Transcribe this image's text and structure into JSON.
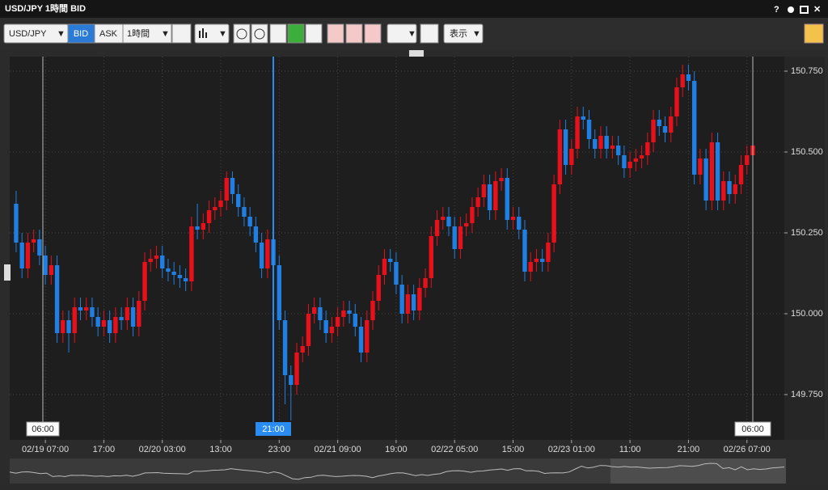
{
  "window": {
    "title": "USD/JPY 1時間 BID",
    "help": "?"
  },
  "toolbar": {
    "symbol": "USD/JPY",
    "bid": "BID",
    "ask": "ASK",
    "period": "1時間",
    "view": "表示"
  },
  "cursor": {
    "left": "06:00",
    "center": "21:00",
    "right": "06:00"
  },
  "chart_data": {
    "type": "candlestick",
    "open": [
      150.34,
      150.22,
      150.14,
      150.22,
      150.23,
      150.18,
      150.12,
      150.15,
      149.94,
      149.98,
      149.94,
      150.02,
      150.01,
      150.02,
      149.99,
      149.96,
      149.98,
      149.94,
      149.99,
      149.98,
      150.02,
      149.96,
      150.04,
      150.16,
      150.17,
      150.18,
      150.14,
      150.13,
      150.12,
      150.11,
      150.1,
      150.27,
      150.26,
      150.28,
      150.32,
      150.33,
      150.35,
      150.42,
      150.37,
      150.33,
      150.3,
      150.27,
      150.22,
      150.14,
      150.23,
      150.15,
      149.98,
      149.81,
      149.78,
      149.88,
      149.9,
      150.0,
      150.02,
      149.98,
      149.94,
      149.96,
      149.99,
      150.01,
      150.0,
      149.96,
      149.88,
      149.98,
      150.04,
      150.12,
      150.17,
      150.16,
      150.09,
      150.0,
      150.06,
      150.01,
      150.08,
      150.11,
      150.24,
      150.29,
      150.3,
      150.27,
      150.2,
      150.27,
      150.28,
      150.33,
      150.36,
      150.4,
      150.32,
      150.41,
      150.42,
      150.29,
      150.3,
      150.26,
      150.13,
      150.16,
      150.17,
      150.16,
      150.22,
      150.4,
      150.57,
      150.46,
      150.51,
      150.61,
      150.6,
      150.54,
      150.51,
      150.55,
      150.51,
      150.52,
      150.49,
      150.45,
      150.47,
      150.48,
      150.49,
      150.53,
      150.6,
      150.58,
      150.56,
      150.61,
      150.7,
      150.74,
      150.72,
      150.43,
      150.48,
      150.35,
      150.53,
      150.35,
      150.41,
      150.37,
      150.4,
      150.46,
      150.49
    ],
    "high": [
      150.38,
      150.25,
      150.25,
      150.26,
      150.26,
      150.21,
      150.18,
      150.18,
      150.01,
      150.01,
      150.05,
      150.05,
      150.05,
      150.05,
      150.02,
      150.01,
      150.01,
      150.02,
      150.02,
      150.05,
      150.05,
      150.07,
      150.19,
      150.2,
      150.21,
      150.21,
      150.17,
      150.16,
      150.15,
      150.14,
      150.3,
      150.34,
      150.31,
      150.35,
      150.36,
      150.38,
      150.44,
      150.44,
      150.4,
      150.36,
      150.33,
      150.3,
      150.25,
      150.26,
      150.26,
      150.18,
      150.01,
      149.84,
      149.91,
      149.93,
      150.03,
      150.05,
      150.05,
      150.01,
      149.99,
      150.02,
      150.04,
      150.04,
      150.03,
      149.99,
      150.01,
      150.07,
      150.15,
      150.2,
      150.2,
      150.19,
      150.12,
      150.09,
      150.09,
      150.11,
      150.14,
      150.27,
      150.32,
      150.33,
      150.33,
      150.3,
      150.3,
      150.31,
      150.36,
      150.39,
      150.43,
      150.43,
      150.44,
      150.45,
      150.45,
      150.33,
      150.33,
      150.29,
      150.19,
      150.2,
      150.2,
      150.25,
      150.43,
      150.6,
      150.6,
      150.54,
      150.64,
      150.64,
      150.63,
      150.57,
      150.58,
      150.58,
      150.55,
      150.55,
      150.52,
      150.5,
      150.51,
      150.52,
      150.56,
      150.63,
      150.63,
      150.61,
      150.64,
      150.73,
      150.77,
      150.77,
      150.75,
      150.51,
      150.51,
      150.56,
      150.56,
      150.44,
      150.44,
      150.43,
      150.49,
      150.52,
      150.54
    ],
    "low": [
      150.19,
      150.11,
      150.11,
      150.19,
      150.15,
      150.09,
      150.09,
      149.91,
      149.91,
      149.88,
      149.91,
      149.98,
      149.98,
      149.96,
      149.93,
      149.93,
      149.91,
      149.91,
      149.95,
      149.95,
      149.93,
      149.93,
      150.01,
      150.13,
      150.14,
      150.11,
      150.1,
      150.09,
      150.08,
      150.07,
      150.07,
      150.23,
      150.23,
      150.25,
      150.29,
      150.3,
      150.32,
      150.34,
      150.3,
      150.27,
      150.24,
      150.19,
      150.11,
      150.11,
      150.12,
      149.95,
      149.72,
      149.67,
      149.75,
      149.85,
      149.87,
      149.97,
      149.95,
      149.91,
      149.91,
      149.93,
      149.96,
      149.97,
      149.93,
      149.85,
      149.85,
      149.95,
      150.01,
      150.09,
      150.13,
      150.06,
      149.97,
      149.97,
      149.98,
      149.98,
      150.05,
      150.08,
      150.21,
      150.26,
      150.24,
      150.17,
      150.17,
      150.24,
      150.25,
      150.3,
      150.33,
      150.29,
      150.29,
      150.38,
      150.26,
      150.26,
      150.23,
      150.1,
      150.1,
      150.13,
      150.13,
      150.13,
      150.19,
      150.37,
      150.43,
      150.43,
      150.48,
      150.57,
      150.51,
      150.48,
      150.48,
      150.48,
      150.48,
      150.46,
      150.42,
      150.42,
      150.44,
      150.45,
      150.46,
      150.5,
      150.55,
      150.53,
      150.53,
      150.58,
      150.67,
      150.69,
      150.4,
      150.4,
      150.32,
      150.32,
      150.32,
      150.32,
      150.34,
      150.34,
      150.37,
      150.43,
      150.46
    ],
    "close": [
      150.22,
      150.14,
      150.22,
      150.23,
      150.18,
      150.12,
      150.15,
      149.94,
      149.98,
      149.94,
      150.02,
      150.01,
      150.02,
      149.99,
      149.96,
      149.98,
      149.94,
      149.99,
      149.98,
      150.02,
      149.96,
      150.04,
      150.16,
      150.17,
      150.18,
      150.14,
      150.13,
      150.12,
      150.11,
      150.1,
      150.27,
      150.26,
      150.28,
      150.32,
      150.33,
      150.35,
      150.42,
      150.37,
      150.33,
      150.3,
      150.27,
      150.22,
      150.14,
      150.23,
      150.15,
      149.98,
      149.81,
      149.78,
      149.88,
      149.9,
      150.0,
      150.02,
      149.98,
      149.94,
      149.96,
      149.99,
      150.01,
      150.0,
      149.96,
      149.88,
      149.98,
      150.04,
      150.12,
      150.17,
      150.16,
      150.09,
      150.0,
      150.06,
      150.01,
      150.08,
      150.11,
      150.24,
      150.29,
      150.3,
      150.27,
      150.2,
      150.27,
      150.28,
      150.33,
      150.36,
      150.4,
      150.32,
      150.41,
      150.42,
      150.29,
      150.3,
      150.26,
      150.13,
      150.16,
      150.17,
      150.16,
      150.22,
      150.4,
      150.57,
      150.46,
      150.51,
      150.61,
      150.6,
      150.54,
      150.51,
      150.55,
      150.51,
      150.52,
      150.49,
      150.45,
      150.47,
      150.48,
      150.49,
      150.53,
      150.6,
      150.58,
      150.56,
      150.61,
      150.7,
      150.74,
      150.72,
      150.43,
      150.48,
      150.35,
      150.53,
      150.35,
      150.41,
      150.37,
      150.4,
      150.46,
      150.49,
      150.52
    ],
    "up_color": "#e8101a",
    "down_color": "#1f7fe2",
    "xlim": [
      -1.1,
      131.4
    ],
    "xticks": [
      {
        "value": 5,
        "label": "02/19 07:00"
      },
      {
        "value": 15,
        "label": "17:00"
      },
      {
        "value": 25,
        "label": "02/20 03:00"
      },
      {
        "value": 35,
        "label": "13:00"
      },
      {
        "value": 45,
        "label": "23:00"
      },
      {
        "value": 55,
        "label": "02/21 09:00"
      },
      {
        "value": 65,
        "label": "19:00"
      },
      {
        "value": 75,
        "label": "02/22 05:00"
      },
      {
        "value": 85,
        "label": "15:00"
      },
      {
        "value": 95,
        "label": "02/23 01:00"
      },
      {
        "value": 105,
        "label": "11:00"
      },
      {
        "value": 115,
        "label": "21:00"
      },
      {
        "value": 125,
        "label": "02/26 07:00"
      }
    ],
    "ylim": [
      149.62,
      150.79
    ],
    "yticks": [
      {
        "value": 149.75,
        "label": "149.750"
      },
      {
        "value": 150,
        "label": "150.000"
      },
      {
        "value": 150.25,
        "label": "150.250"
      },
      {
        "value": 150.5,
        "label": "150.500"
      },
      {
        "value": 150.75,
        "label": "150.750"
      }
    ],
    "grid": true
  }
}
